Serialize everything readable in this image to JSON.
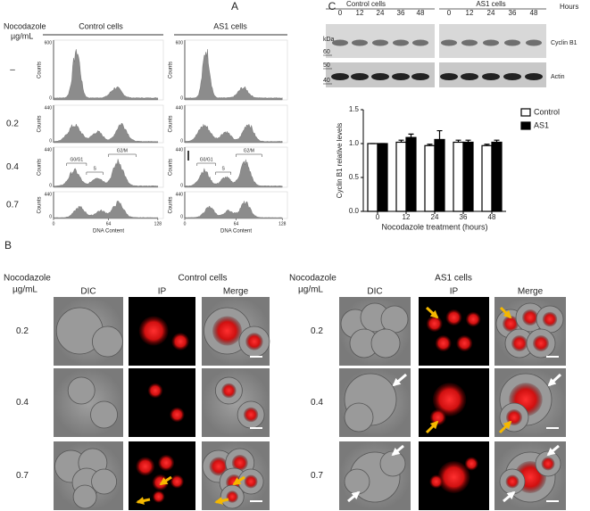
{
  "panel_a": {
    "label": "A",
    "treatment": "Nocodazole",
    "unit": "µg/mL",
    "columns": [
      "Control cells",
      "AS1 cells"
    ],
    "doses": [
      "–",
      "0.2",
      "0.4",
      "0.7"
    ],
    "y_axis_title": "Counts",
    "y_tick_top": [
      "600",
      "440",
      "440",
      "440"
    ],
    "y_tick_zero": "0",
    "x_ticks": [
      "0",
      "64",
      "128"
    ],
    "x_axis_title": "DNA Content",
    "phases": [
      "G0/G1",
      "S",
      "G2/M"
    ]
  },
  "panel_b": {
    "label": "B",
    "groups": [
      {
        "treatment": "Nocodazole",
        "unit": "µg/mL",
        "title": "Control cells",
        "columns": [
          "DIC",
          "IP",
          "Merge"
        ],
        "doses": [
          "0.2",
          "0.4",
          "0.7"
        ]
      },
      {
        "treatment": "Nocodazole",
        "unit": "µg/mL",
        "title": "AS1 cells",
        "columns": [
          "DIC",
          "IP",
          "Merge"
        ],
        "doses": [
          "0.2",
          "0.4",
          "0.7"
        ]
      }
    ]
  },
  "panel_c": {
    "label": "C",
    "blot": {
      "groups": [
        "Control cells",
        "AS1 cells"
      ],
      "hours_label": "Hours",
      "lanes": [
        "0",
        "12",
        "24",
        "36",
        "48"
      ],
      "kda_label": "kDa",
      "markers": [
        "60",
        "50",
        "40"
      ],
      "bands": [
        "Cyclin B1",
        "Actin"
      ]
    },
    "chart_data": {
      "type": "bar",
      "xlabel": "Nocodazole treatment (hours)",
      "ylabel": "Cyclin B1 relative levels",
      "categories": [
        "0",
        "12",
        "24",
        "36",
        "48"
      ],
      "series": [
        {
          "name": "Control",
          "color": "#ffffff",
          "values": [
            1.0,
            1.02,
            0.97,
            1.02,
            0.97
          ],
          "errors": [
            0,
            0.03,
            0.02,
            0.03,
            0.02
          ]
        },
        {
          "name": "AS1",
          "color": "#000000",
          "values": [
            1.0,
            1.09,
            1.06,
            1.02,
            1.02
          ],
          "errors": [
            0,
            0.05,
            0.13,
            0.03,
            0.03
          ]
        }
      ],
      "ylim": [
        0,
        1.5
      ],
      "yticks": [
        {
          "value": 0,
          "label": "0.0"
        },
        {
          "value": 0.5,
          "label": "0.5"
        },
        {
          "value": 1,
          "label": "1.0"
        },
        {
          "value": 1.5,
          "label": "1.5"
        }
      ],
      "legend": "upper right"
    }
  }
}
